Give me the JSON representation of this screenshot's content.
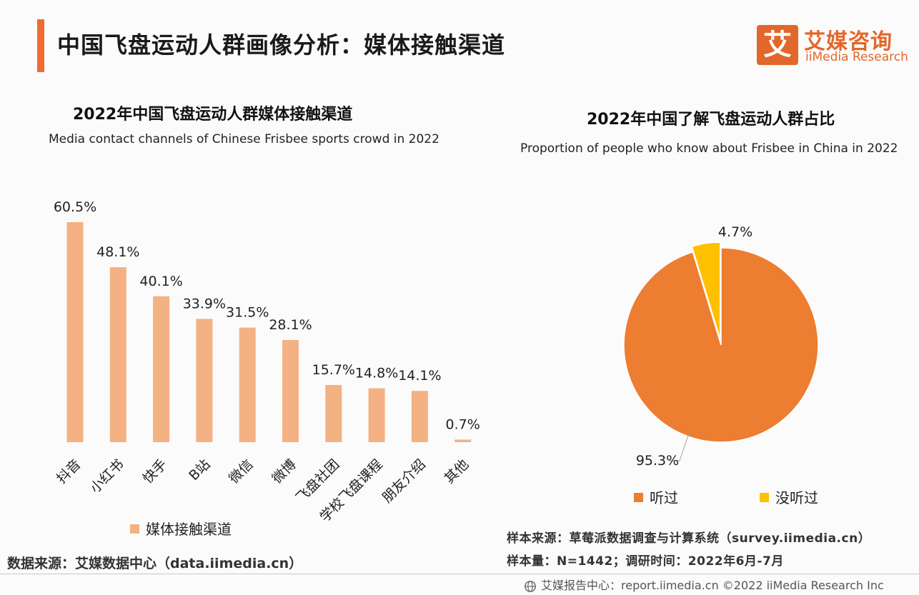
{
  "header": {
    "title": "中国飞盘运动人群画像分析：媒体接触渠道",
    "logo_mark": "艾",
    "logo_cn": "艾媒咨询",
    "logo_en": "iiMedia Research"
  },
  "left_chart": {
    "title": "2022年中国飞盘运动人群媒体接触渠道",
    "subtitle": "Media contact channels of Chinese Frisbee sports crowd in 2022",
    "legend": "媒体接触渠道",
    "color": "#f4b183"
  },
  "right_chart": {
    "title": "2022年中国了解飞盘运动人群占比",
    "subtitle": "Proportion of people who know about Frisbee in China in 2022",
    "legend": [
      "听过",
      "没听过"
    ],
    "colors": [
      "#ed7d31",
      "#ffc000"
    ]
  },
  "chart_data": [
    {
      "type": "bar",
      "categories": [
        "抖音",
        "小红书",
        "快手",
        "B站",
        "微信",
        "微博",
        "飞盘社团",
        "学校飞盘课程",
        "朋友介绍",
        "其他"
      ],
      "series": [
        {
          "name": "媒体接触渠道",
          "values": [
            60.5,
            48.1,
            40.1,
            33.9,
            31.5,
            28.1,
            15.7,
            14.8,
            14.1,
            0.7
          ]
        }
      ],
      "data_labels": [
        "60.5%",
        "48.1%",
        "40.1%",
        "33.9%",
        "31.5%",
        "28.1%",
        "15.7%",
        "14.8%",
        "14.1%",
        "0.7%"
      ],
      "ylim": [
        0,
        60.5
      ],
      "grid": false
    },
    {
      "type": "pie",
      "labels": [
        "听过",
        "没听过"
      ],
      "values": [
        95.3,
        4.7
      ],
      "data_labels": [
        "95.3%",
        "4.7%"
      ],
      "legend_position": "bottom"
    }
  ],
  "sources": {
    "left": "数据来源：艾媒数据中心（data.iimedia.cn）",
    "sample_source": "样本来源：草莓派数据调查与计算系统（survey.iimedia.cn）",
    "sample_size": "样本量：N=1442；调研时间：2022年6月-7月"
  },
  "footer": {
    "text": "艾媒报告中心：report.iimedia.cn   ©2022  iiMedia Research  Inc"
  }
}
